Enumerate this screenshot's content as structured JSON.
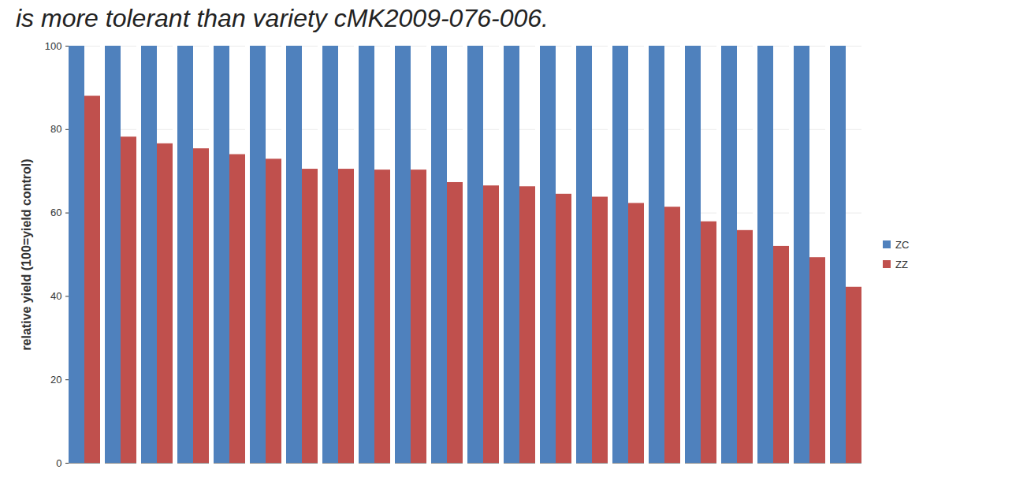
{
  "chart_data": {
    "type": "bar",
    "title": "is more tolerant than variety cMK2009-076-006.",
    "y_label": "relative yield (100=yield control)",
    "categories": [
      null,
      null,
      null,
      null,
      null,
      null,
      null,
      null,
      null,
      null,
      null,
      null,
      null,
      null,
      null,
      null,
      null,
      null,
      null,
      null,
      null,
      null
    ],
    "series": [
      {
        "name": "ZC",
        "color": "#4f81bd",
        "values": [
          100,
          100,
          100,
          100,
          100,
          100,
          100,
          100,
          100,
          100,
          100,
          100,
          100,
          100,
          100,
          100,
          100,
          100,
          100,
          100,
          100,
          100
        ]
      },
      {
        "name": "ZZ",
        "color": "#c0504d",
        "values": [
          88,
          78.2,
          76.6,
          75.4,
          74,
          72.9,
          70.5,
          70.5,
          70.3,
          70.3,
          67.3,
          66.5,
          66.3,
          64.5,
          63.8,
          62.3,
          61.4,
          57.9,
          55.8,
          52,
          49.3,
          42.2
        ]
      }
    ],
    "ylim": [
      0,
      100
    ],
    "yticks": [
      0,
      20,
      40,
      60,
      80,
      100
    ],
    "grid": true,
    "legend": "right"
  }
}
